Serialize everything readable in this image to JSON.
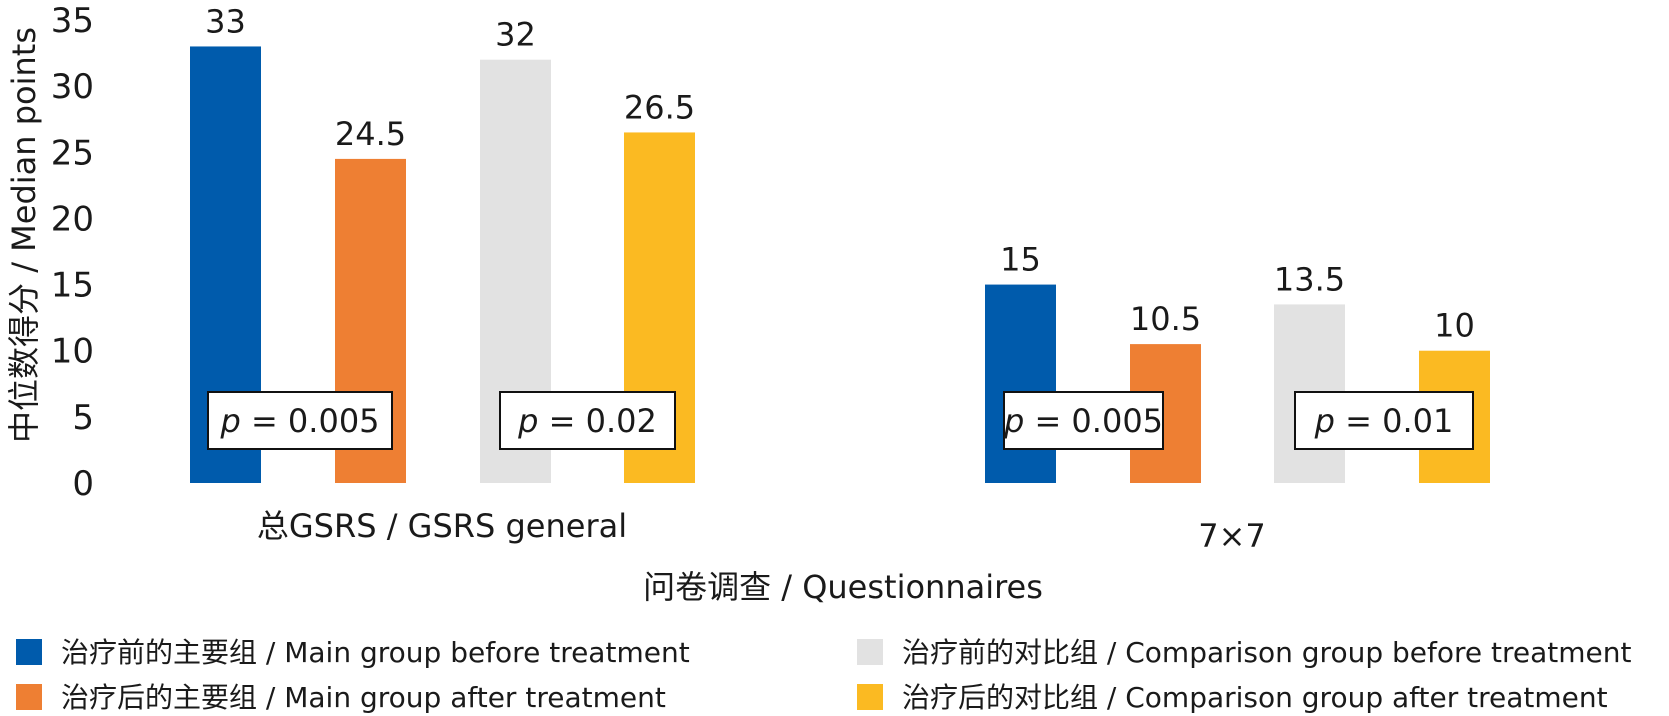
{
  "chart_data": {
    "type": "bar",
    "categories": [
      "总GSRS / GSRS general",
      "7×7"
    ],
    "series": [
      {
        "name": "治疗前的主要组 / Main group before treatment",
        "color": "#005bac",
        "values": [
          33,
          15
        ]
      },
      {
        "name": "治疗后的主要组 / Main group after treatment",
        "color": "#ee7f33",
        "values": [
          24.5,
          10.5
        ]
      },
      {
        "name": "治疗前的对比组 / Comparison group before treatment",
        "color": "#e2e2e2",
        "values": [
          32,
          13.5
        ]
      },
      {
        "name": "治疗后的对比组 / Comparison group after treatment",
        "color": "#fbba22",
        "values": [
          26.5,
          10
        ]
      }
    ],
    "data_labels": [
      [
        "33",
        "15"
      ],
      [
        "24.5",
        "10.5"
      ],
      [
        "32",
        "13.5"
      ],
      [
        "26.5",
        "10"
      ]
    ],
    "xlabel": "问卷调查 / Questionnaires",
    "ylabel": "中位数得分 / Median points",
    "ylim": [
      0,
      35
    ],
    "yticks": [
      0,
      5,
      10,
      15,
      20,
      25,
      30,
      35
    ],
    "grid": false,
    "legend": "bottom",
    "annotations": [
      {
        "p_italic": "p",
        "text": " = 0.005"
      },
      {
        "p_italic": "p",
        "text": " = 0.02"
      },
      {
        "p_italic": "p",
        "text": " = 0.005"
      },
      {
        "p_italic": "p",
        "text": " = 0.01"
      }
    ]
  }
}
